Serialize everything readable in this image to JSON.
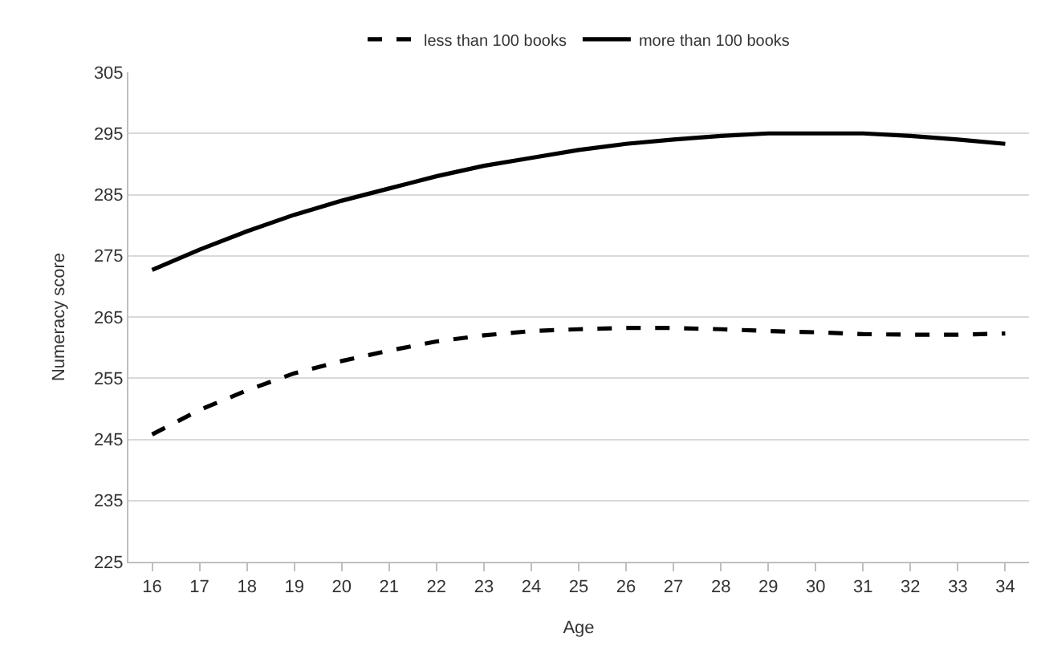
{
  "chart_data": {
    "type": "line",
    "xlabel": "Age",
    "ylabel": "Numeracy score",
    "categories": [
      "16",
      "17",
      "18",
      "19",
      "20",
      "21",
      "22",
      "23",
      "24",
      "25",
      "26",
      "27",
      "28",
      "29",
      "30",
      "31",
      "32",
      "33",
      "34"
    ],
    "series": [
      {
        "name": "less than 100 books",
        "color": "#000000",
        "line_style": "dashed",
        "values": [
          245.8,
          249.8,
          253,
          255.8,
          257.8,
          259.5,
          261,
          262,
          262.7,
          263,
          263.2,
          263.2,
          263,
          262.7,
          262.5,
          262.2,
          262.1,
          262.1,
          262.3
        ]
      },
      {
        "name": "more than 100 books",
        "color": "#000000",
        "line_style": "solid",
        "values": [
          272.7,
          276,
          279,
          281.7,
          284,
          286,
          288,
          289.7,
          291,
          292.3,
          293.3,
          294,
          294.6,
          295,
          295,
          295,
          294.6,
          294,
          293.3
        ]
      }
    ],
    "ylim": [
      225,
      305
    ],
    "yticks": [
      225,
      235,
      245,
      255,
      265,
      275,
      285,
      295,
      305
    ],
    "grid": "y",
    "legend": "top",
    "marker": "none"
  }
}
